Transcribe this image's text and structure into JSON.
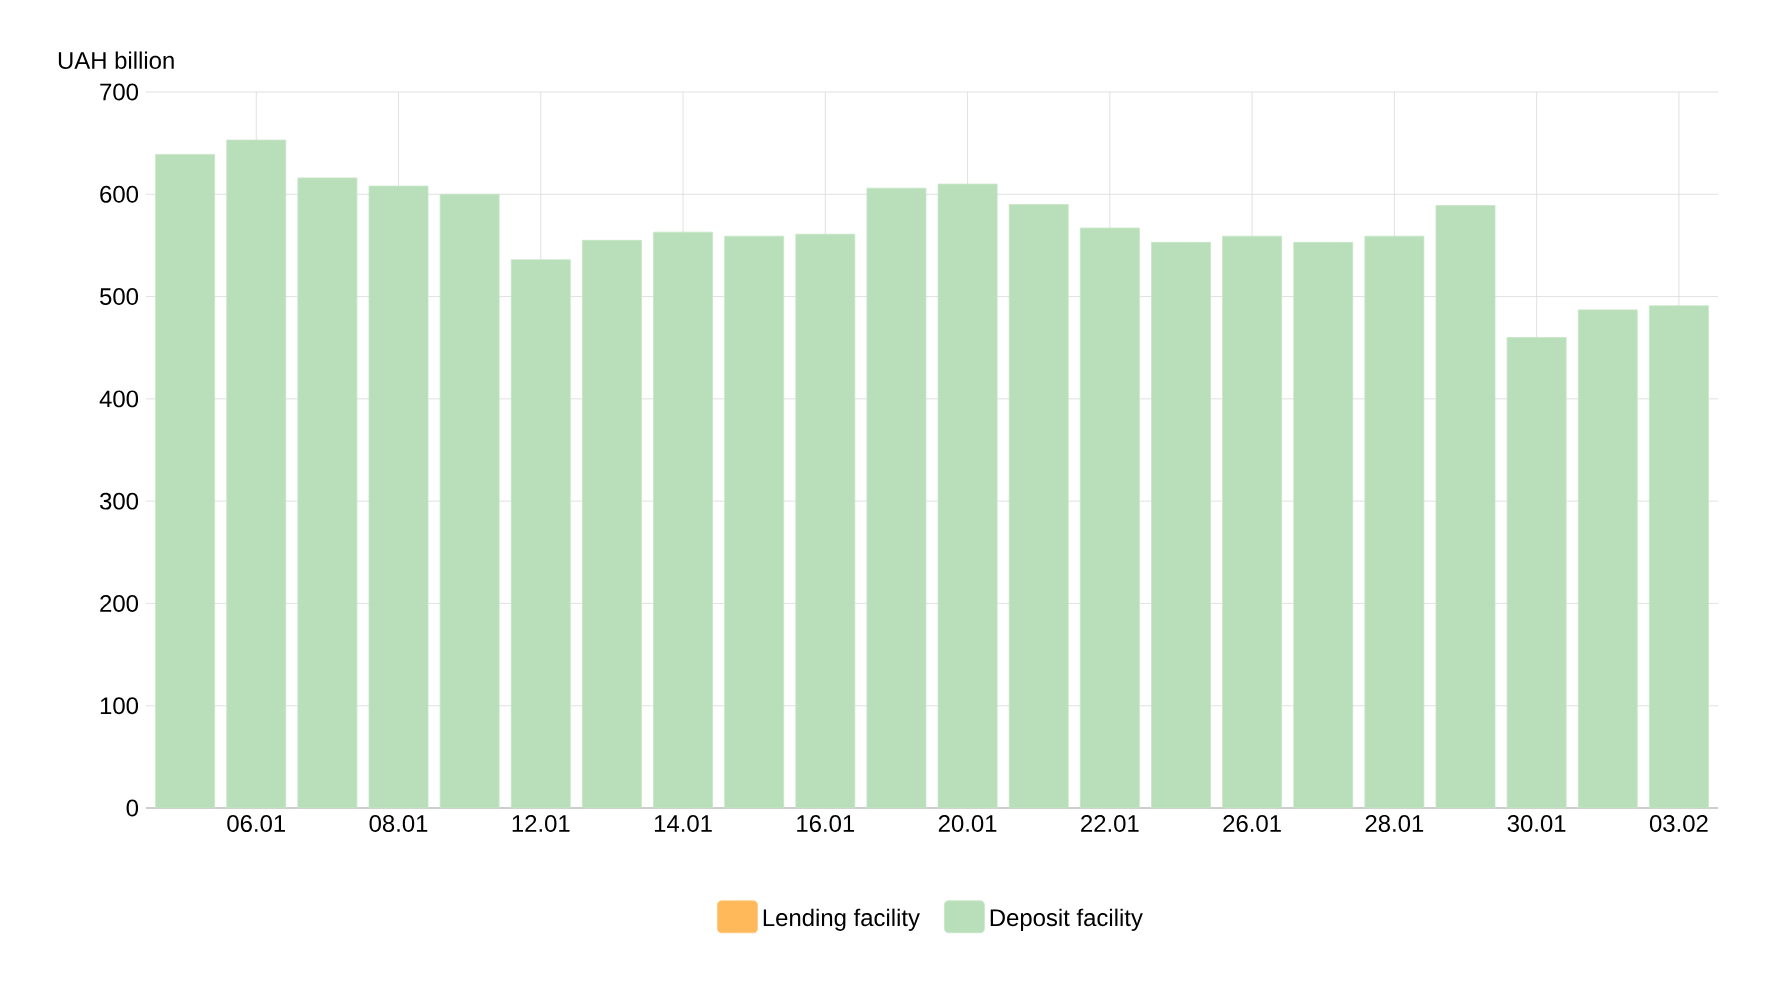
{
  "chart_data": {
    "type": "bar",
    "ylabel": "UAH billion",
    "categories": [
      null,
      "06.01",
      null,
      "08.01",
      null,
      "12.01",
      null,
      "14.01",
      null,
      "16.01",
      null,
      "20.01",
      null,
      "22.01",
      null,
      "26.01",
      null,
      "28.01",
      null,
      "30.01",
      null,
      "03.02"
    ],
    "series": [
      {
        "name": "Lending facility",
        "color": "#ffb95a",
        "values": [
          null,
          null,
          null,
          null,
          null,
          null,
          null,
          null,
          null,
          null,
          null,
          null,
          null,
          null,
          null,
          null,
          null,
          null,
          null,
          null,
          null,
          null
        ]
      },
      {
        "name": "Deposit facility",
        "color": "#b8dfb9",
        "values": [
          639,
          653,
          616,
          608,
          600,
          536,
          555,
          563,
          559,
          561,
          606,
          610,
          590,
          567,
          553,
          559,
          553,
          559,
          589,
          460,
          487,
          491
        ]
      }
    ],
    "ylim": [
      0,
      700
    ],
    "yticks": [
      0,
      100,
      200,
      300,
      400,
      500,
      600,
      700
    ],
    "grid": true,
    "legend": "bottom"
  }
}
